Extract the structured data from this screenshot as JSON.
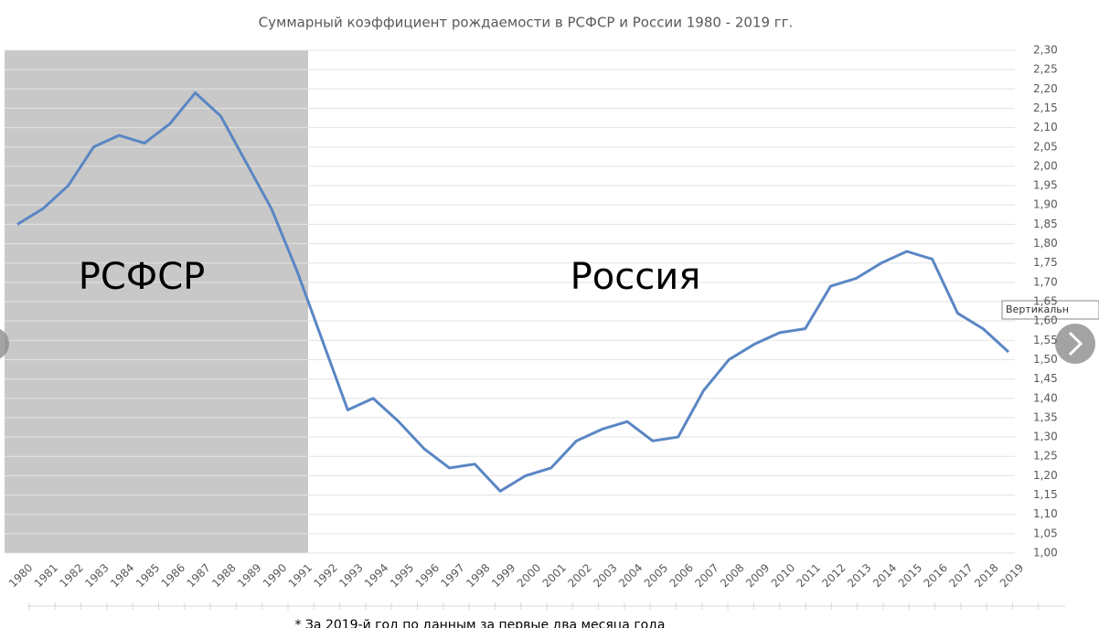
{
  "chart_data": {
    "type": "line",
    "title": "Суммарный коэффициент рождаемости в РСФСР и России 1980 - 2019 гг.",
    "annotations": [
      "РСФСР",
      "Россия"
    ],
    "footnote": "* За 2019-й год по данным за первые два месяца года",
    "tooltip": "Вертикальн",
    "categories": [
      "1980",
      "1981",
      "1982",
      "1983",
      "1984",
      "1985",
      "1986",
      "1987",
      "1988",
      "1989",
      "1990",
      "1991",
      "1992",
      "1993",
      "1994",
      "1995",
      "1996",
      "1997",
      "1998",
      "1999",
      "2000",
      "2001",
      "2002",
      "2003",
      "2004",
      "2005",
      "2006",
      "2007",
      "2008",
      "2009",
      "2010",
      "2011",
      "2012",
      "2013",
      "2014",
      "2015",
      "2016",
      "2017",
      "2018",
      "2019"
    ],
    "series": [
      {
        "color": "#5a86c4",
        "values": [
          1.85,
          1.89,
          1.95,
          2.05,
          2.08,
          2.06,
          2.11,
          2.19,
          2.13,
          2.01,
          1.89,
          1.73,
          1.55,
          1.37,
          1.4,
          1.34,
          1.27,
          1.22,
          1.23,
          1.16,
          1.2,
          1.22,
          1.29,
          1.32,
          1.34,
          1.29,
          1.3,
          1.42,
          1.5,
          1.54,
          1.57,
          1.58,
          1.69,
          1.71,
          1.75,
          1.78,
          1.76,
          1.62,
          1.58,
          1.52
        ]
      }
    ],
    "ylim": [
      1.0,
      2.3
    ],
    "yticks": [
      {
        "value": 1.0,
        "label": "1,00"
      },
      {
        "value": 1.05,
        "label": "1,05"
      },
      {
        "value": 1.1,
        "label": "1,10"
      },
      {
        "value": 1.15,
        "label": "1,15"
      },
      {
        "value": 1.2,
        "label": "1,20"
      },
      {
        "value": 1.25,
        "label": "1,25"
      },
      {
        "value": 1.3,
        "label": "1,30"
      },
      {
        "value": 1.35,
        "label": "1,35"
      },
      {
        "value": 1.4,
        "label": "1,40"
      },
      {
        "value": 1.45,
        "label": "1,45"
      },
      {
        "value": 1.5,
        "label": "1,50"
      },
      {
        "value": 1.55,
        "label": "1,55"
      },
      {
        "value": 1.6,
        "label": "1,60"
      },
      {
        "value": 1.65,
        "label": "1,65"
      },
      {
        "value": 1.7,
        "label": "1,70"
      },
      {
        "value": 1.75,
        "label": "1,75"
      },
      {
        "value": 1.8,
        "label": "1,80"
      },
      {
        "value": 1.85,
        "label": "1,85"
      },
      {
        "value": 1.9,
        "label": "1,90"
      },
      {
        "value": 1.95,
        "label": "1,95"
      },
      {
        "value": 2.0,
        "label": "2,00"
      },
      {
        "value": 2.05,
        "label": "2,05"
      },
      {
        "value": 2.1,
        "label": "2,10"
      },
      {
        "value": 2.15,
        "label": "2,15"
      },
      {
        "value": 2.2,
        "label": "2,20"
      },
      {
        "value": 2.25,
        "label": "2,25"
      },
      {
        "value": 2.3,
        "label": "2,30"
      }
    ],
    "grid": true
  }
}
